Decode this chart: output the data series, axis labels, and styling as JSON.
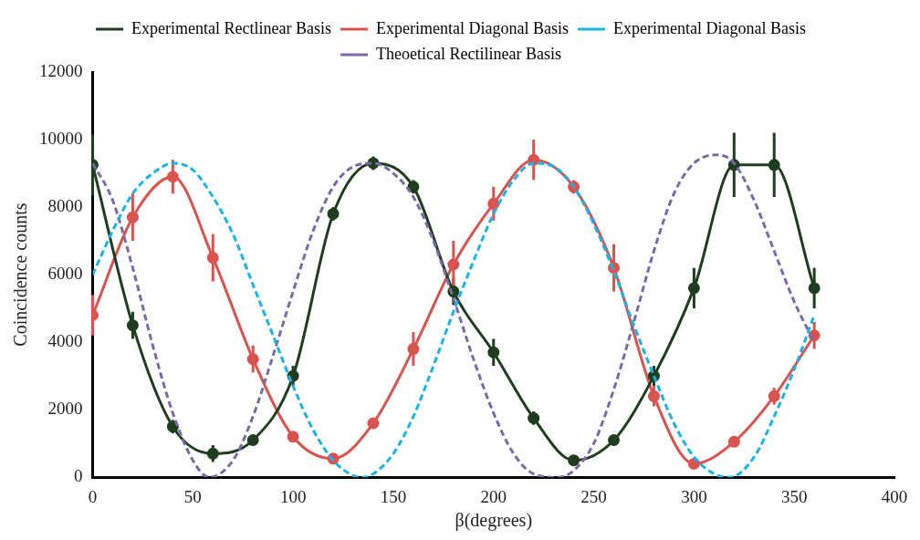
{
  "chart_data": {
    "type": "line",
    "xlabel": "β(degrees)",
    "ylabel": "Coincidence counts",
    "xlim": [
      0,
      400
    ],
    "xticks": [
      0,
      50,
      100,
      150,
      200,
      250,
      300,
      350,
      400
    ],
    "ylim": [
      0,
      12000
    ],
    "yticks": [
      0,
      2000,
      4000,
      6000,
      8000,
      10000,
      12000
    ],
    "grid": false,
    "legend": "top",
    "series": [
      {
        "name": "Experimental Rectlinear Basis",
        "color": "#1f3d1f",
        "marker": "circle",
        "line_style": "solid",
        "x": [
          0,
          20,
          40,
          60,
          80,
          100,
          120,
          140,
          160,
          180,
          200,
          220,
          240,
          260,
          280,
          300,
          320,
          340,
          360
        ],
        "values": [
          9250,
          4500,
          1500,
          700,
          1100,
          3000,
          7800,
          9300,
          8600,
          5500,
          3700,
          1750,
          500,
          1100,
          3000,
          5600,
          9250,
          9250,
          5600
        ],
        "errors": [
          900,
          400,
          200,
          250,
          150,
          300,
          200,
          200,
          200,
          400,
          400,
          200,
          100,
          150,
          300,
          600,
          950,
          950,
          600
        ]
      },
      {
        "name": "Experimental Diagonal Basis",
        "color": "#d9534f",
        "marker": "circle",
        "line_style": "solid",
        "x": [
          0,
          20,
          40,
          60,
          80,
          100,
          120,
          140,
          160,
          180,
          200,
          220,
          240,
          260,
          280,
          300,
          320,
          340,
          360
        ],
        "values": [
          4800,
          7700,
          8900,
          6500,
          3500,
          1200,
          550,
          1600,
          3800,
          6300,
          8100,
          9400,
          8600,
          6200,
          2400,
          400,
          1050,
          2400,
          4200
        ],
        "errors": [
          600,
          700,
          500,
          700,
          400,
          100,
          100,
          150,
          500,
          700,
          500,
          600,
          200,
          700,
          300,
          100,
          100,
          250,
          400
        ]
      },
      {
        "name": "Experimental Diagonal Basis",
        "color": "#1ab2e8",
        "marker": "none",
        "line_style": "dashed",
        "x": [
          0,
          10,
          20,
          30,
          40,
          50,
          60,
          70,
          80,
          90,
          100,
          110,
          120,
          130,
          135,
          140,
          150,
          160,
          170,
          180,
          190,
          200,
          210,
          220,
          230,
          240,
          250,
          260,
          270,
          280,
          290,
          300,
          310,
          318,
          330,
          340,
          350,
          360
        ],
        "values": [
          6000,
          7300,
          8400,
          9000,
          9300,
          9100,
          8300,
          7200,
          5700,
          4200,
          2700,
          1400,
          500,
          50,
          0,
          100,
          700,
          1800,
          3300,
          4900,
          6400,
          7800,
          8800,
          9300,
          9200,
          8600,
          7500,
          6100,
          4500,
          3000,
          1600,
          600,
          100,
          0,
          600,
          1800,
          3200,
          4800
        ]
      },
      {
        "name": "Theoetical Rectilinear Basis",
        "color": "#7b6aa8",
        "marker": "none",
        "line_style": "dashed",
        "x": [
          0,
          10,
          20,
          30,
          40,
          50,
          58,
          70,
          80,
          90,
          100,
          110,
          120,
          130,
          140,
          150,
          160,
          170,
          180,
          190,
          200,
          210,
          220,
          232,
          240,
          250,
          260,
          270,
          280,
          290,
          300,
          312,
          320,
          330,
          340,
          350,
          360
        ],
        "values": [
          9300,
          8200,
          6200,
          3900,
          1900,
          500,
          0,
          500,
          1800,
          3600,
          5500,
          7300,
          8600,
          9200,
          9300,
          9000,
          8300,
          7000,
          5300,
          3500,
          1900,
          700,
          100,
          0,
          200,
          1000,
          2600,
          4600,
          6700,
          8400,
          9300,
          9550,
          9300,
          8200,
          6700,
          5200,
          4000
        ]
      }
    ]
  }
}
